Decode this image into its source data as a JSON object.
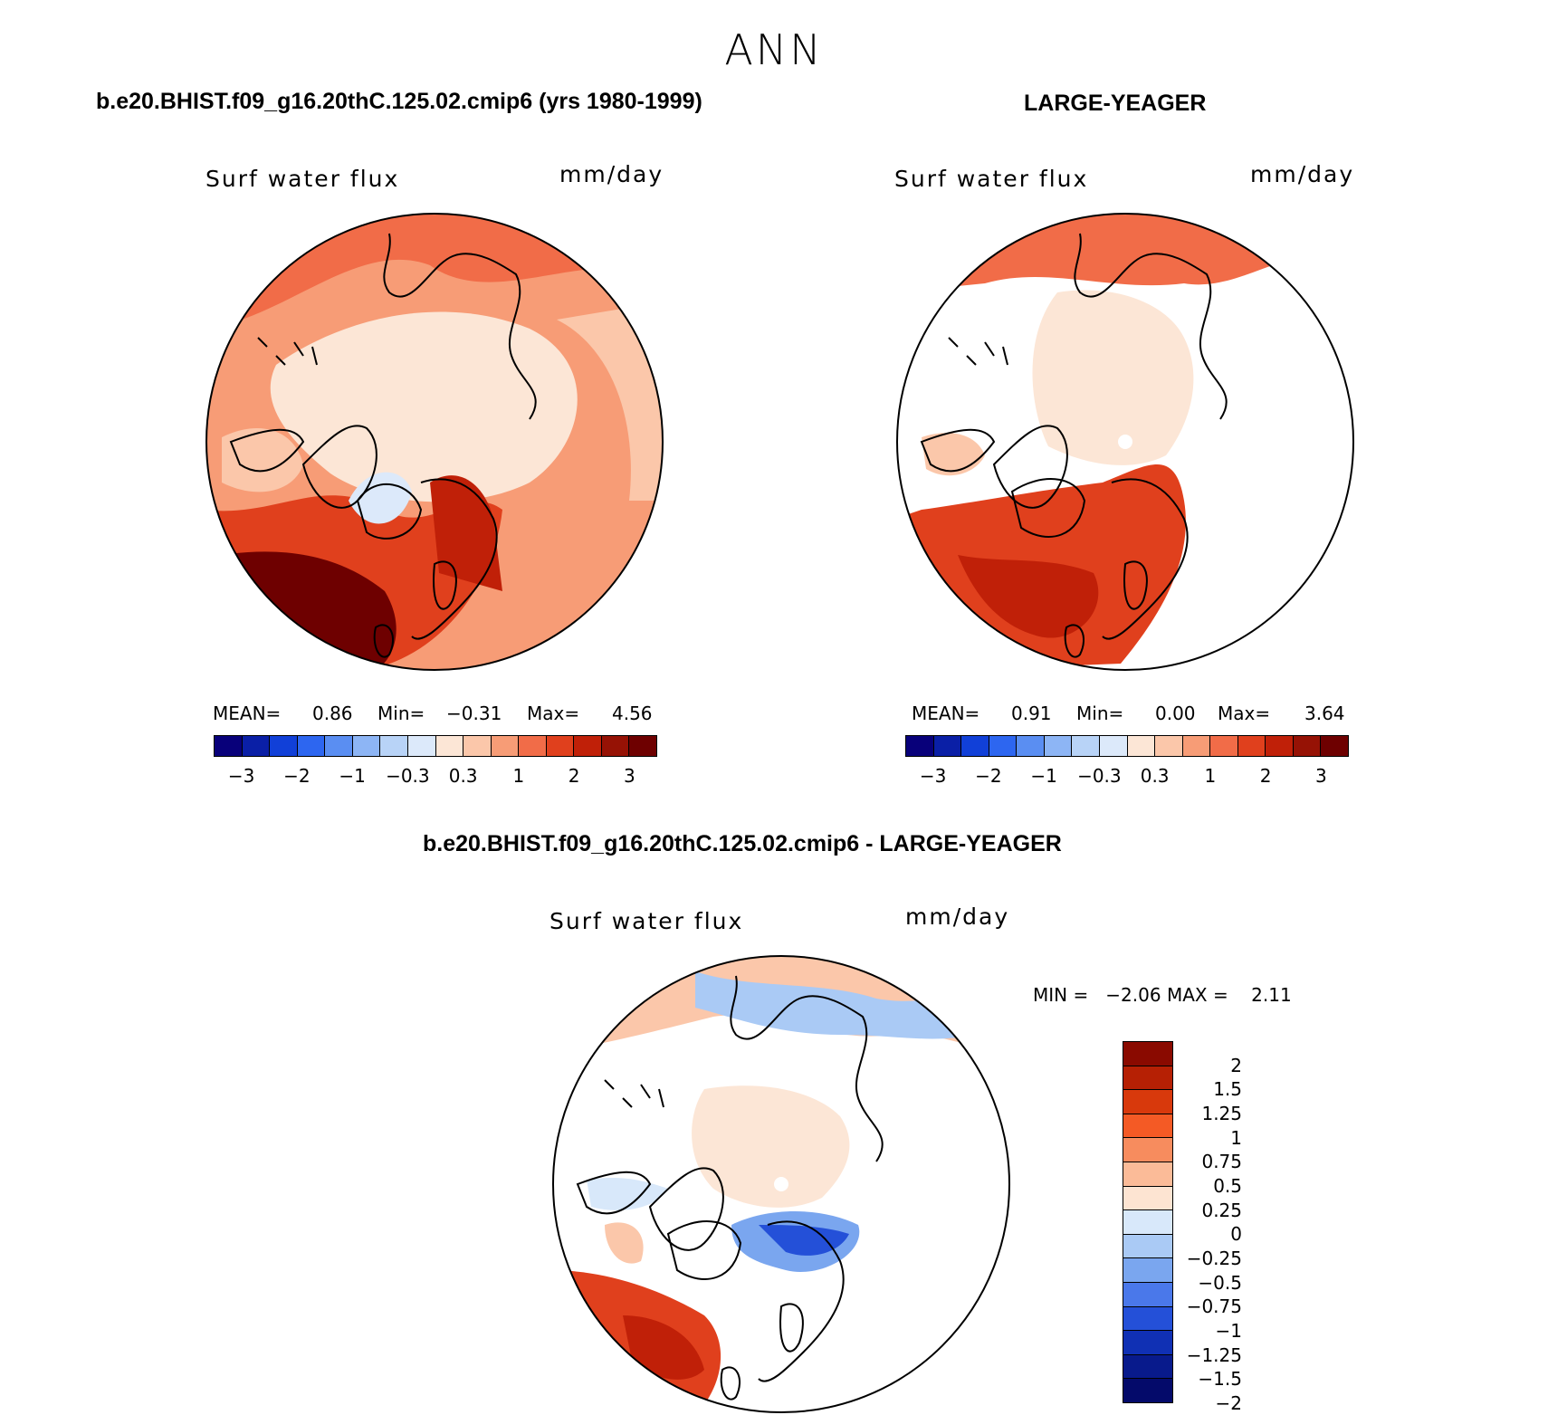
{
  "season": "ANN",
  "panels": {
    "model": {
      "header": "b.e20.BHIST.f09_g16.20thC.125.02.cmip6 (yrs 1980-1999)",
      "variable": "Surf water flux",
      "units": "mm/day",
      "stats": {
        "mean_label": "MEAN=",
        "mean": "0.86",
        "min_label": "Min=",
        "min": "−0.31",
        "max_label": "Max=",
        "max": "4.56"
      }
    },
    "obs": {
      "header": "LARGE-YEAGER",
      "variable": "Surf water flux",
      "units": "mm/day",
      "stats": {
        "mean_label": "MEAN=",
        "mean": "0.91",
        "min_label": "Min=",
        "min": "0.00",
        "max_label": "Max=",
        "max": "3.64"
      }
    },
    "diff": {
      "header": "b.e20.BHIST.f09_g16.20thC.125.02.cmip6 - LARGE-YEAGER",
      "variable": "Surf water flux",
      "units": "mm/day",
      "minmax": "MIN =   −2.06 MAX =    2.11"
    }
  },
  "colorbar_h": {
    "colors": [
      "#08007a",
      "#0a1fa6",
      "#1140d8",
      "#2d66f0",
      "#5a8ef2",
      "#8db5f5",
      "#b8d3f7",
      "#dce9fa",
      "#fce6d6",
      "#fbc7aa",
      "#f79c76",
      "#f16c48",
      "#e0401d",
      "#c02008",
      "#961205",
      "#6e0000"
    ],
    "ticks": [
      "−3",
      "−2",
      "−1",
      "−0.3",
      "0.3",
      "1",
      "2",
      "3"
    ]
  },
  "colorbar_v": {
    "colors": [
      "#8a0a00",
      "#b62004",
      "#d8390c",
      "#f45a25",
      "#f78c5e",
      "#fbbb98",
      "#fde4d2",
      "#d8e8fa",
      "#aacaf5",
      "#7aa6ef",
      "#4a78ea",
      "#2450d8",
      "#1030b4",
      "#081a8c",
      "#040a6a"
    ],
    "ticks": [
      "2",
      "1.5",
      "1.25",
      "1",
      "0.75",
      "0.5",
      "0.25",
      "0",
      "−0.25",
      "−0.5",
      "−0.75",
      "−1",
      "−1.25",
      "−1.5",
      "−2"
    ]
  }
}
